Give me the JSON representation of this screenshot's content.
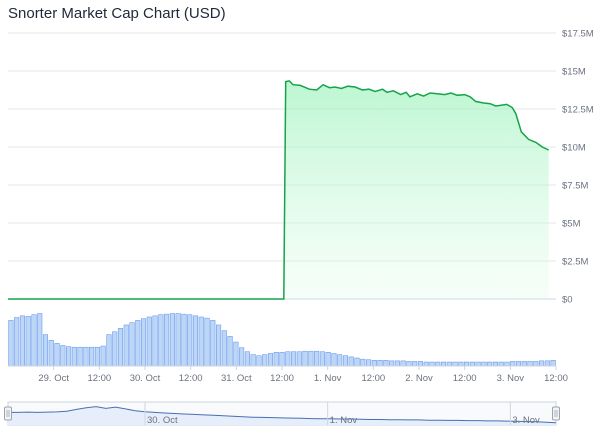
{
  "chart_data": {
    "type": "area",
    "title": "Snorter Market Cap Chart (USD)",
    "y_axis": {
      "min": 0,
      "max": 17.5,
      "unit": "M USD",
      "ticks": [
        {
          "value": 0,
          "label": "$0"
        },
        {
          "value": 2.5,
          "label": "$2.5M"
        },
        {
          "value": 5,
          "label": "$5M"
        },
        {
          "value": 7.5,
          "label": "$7.5M"
        },
        {
          "value": 10,
          "label": "$10M"
        },
        {
          "value": 12.5,
          "label": "$12.5M"
        },
        {
          "value": 15,
          "label": "$15M"
        },
        {
          "value": 17.5,
          "label": "$17.5M"
        }
      ],
      "position": "right"
    },
    "x_axis": {
      "min": 0,
      "max": 6.0,
      "unit": "days from 28 Oct 12:00",
      "ticks": [
        {
          "value": 0.5,
          "label": "29. Oct"
        },
        {
          "value": 1.0,
          "label": "12:00"
        },
        {
          "value": 1.5,
          "label": "30. Oct"
        },
        {
          "value": 2.0,
          "label": "12:00"
        },
        {
          "value": 2.5,
          "label": "31. Oct"
        },
        {
          "value": 3.0,
          "label": "12:00"
        },
        {
          "value": 3.5,
          "label": "1. Nov"
        },
        {
          "value": 4.0,
          "label": "12:00"
        },
        {
          "value": 4.5,
          "label": "2. Nov"
        },
        {
          "value": 5.0,
          "label": "12:00"
        },
        {
          "value": 5.5,
          "label": "3. Nov"
        },
        {
          "value": 6.0,
          "label": "12:00"
        }
      ]
    },
    "grid": true,
    "series": [
      {
        "name": "Market Cap",
        "color": "#16a34a",
        "fill": "#dcfce7",
        "points": [
          [
            0.0,
            0.0
          ],
          [
            2.95,
            0.0
          ],
          [
            3.02,
            0.0
          ],
          [
            3.04,
            14.3
          ],
          [
            3.08,
            14.35
          ],
          [
            3.12,
            14.1
          ],
          [
            3.2,
            14.05
          ],
          [
            3.3,
            13.8
          ],
          [
            3.38,
            13.75
          ],
          [
            3.45,
            14.1
          ],
          [
            3.52,
            13.9
          ],
          [
            3.58,
            13.95
          ],
          [
            3.65,
            13.85
          ],
          [
            3.72,
            14.0
          ],
          [
            3.8,
            13.95
          ],
          [
            3.88,
            13.75
          ],
          [
            3.95,
            13.8
          ],
          [
            4.02,
            13.65
          ],
          [
            4.1,
            13.8
          ],
          [
            4.15,
            13.6
          ],
          [
            4.22,
            13.7
          ],
          [
            4.3,
            13.45
          ],
          [
            4.36,
            13.6
          ],
          [
            4.4,
            13.3
          ],
          [
            4.48,
            13.5
          ],
          [
            4.55,
            13.35
          ],
          [
            4.62,
            13.55
          ],
          [
            4.7,
            13.5
          ],
          [
            4.78,
            13.45
          ],
          [
            4.85,
            13.55
          ],
          [
            4.92,
            13.4
          ],
          [
            5.0,
            13.45
          ],
          [
            5.06,
            13.3
          ],
          [
            5.12,
            13.0
          ],
          [
            5.2,
            12.9
          ],
          [
            5.28,
            12.85
          ],
          [
            5.34,
            12.7
          ],
          [
            5.4,
            12.75
          ],
          [
            5.46,
            12.8
          ],
          [
            5.52,
            12.6
          ],
          [
            5.56,
            12.2
          ],
          [
            5.62,
            11.0
          ],
          [
            5.7,
            10.5
          ],
          [
            5.78,
            10.3
          ],
          [
            5.85,
            10.0
          ],
          [
            5.92,
            9.8
          ]
        ]
      }
    ],
    "volume": {
      "type": "bar",
      "color": "#bcd6f5",
      "border": "#5b8def",
      "max": 1.0,
      "values": [
        0.8,
        0.85,
        0.88,
        0.87,
        0.9,
        0.92,
        0.55,
        0.45,
        0.4,
        0.36,
        0.34,
        0.33,
        0.33,
        0.33,
        0.33,
        0.33,
        0.35,
        0.55,
        0.6,
        0.66,
        0.72,
        0.76,
        0.8,
        0.83,
        0.86,
        0.88,
        0.9,
        0.91,
        0.92,
        0.92,
        0.91,
        0.9,
        0.88,
        0.86,
        0.84,
        0.8,
        0.72,
        0.62,
        0.52,
        0.42,
        0.32,
        0.25,
        0.2,
        0.18,
        0.2,
        0.22,
        0.24,
        0.24,
        0.25,
        0.25,
        0.25,
        0.26,
        0.26,
        0.26,
        0.25,
        0.24,
        0.22,
        0.2,
        0.18,
        0.16,
        0.14,
        0.12,
        0.11,
        0.1,
        0.1,
        0.1,
        0.09,
        0.09,
        0.09,
        0.08,
        0.08,
        0.08,
        0.07,
        0.07,
        0.07,
        0.07,
        0.07,
        0.07,
        0.07,
        0.07,
        0.07,
        0.07,
        0.07,
        0.07,
        0.07,
        0.07,
        0.07,
        0.08,
        0.08,
        0.08,
        0.08,
        0.08,
        0.09,
        0.09,
        0.1
      ]
    },
    "navigator": {
      "color": "#4a6fb5",
      "fill": "#e6eefb",
      "labels": [
        {
          "value": 1.5,
          "label": "30. Oct"
        },
        {
          "value": 3.5,
          "label": "1. Nov"
        },
        {
          "value": 5.5,
          "label": "3. Nov"
        }
      ],
      "values": [
        0.55,
        0.55,
        0.56,
        0.55,
        0.56,
        0.57,
        0.6,
        0.68,
        0.75,
        0.8,
        0.72,
        0.78,
        0.7,
        0.62,
        0.58,
        0.55,
        0.52,
        0.5,
        0.48,
        0.46,
        0.44,
        0.42,
        0.4,
        0.38,
        0.36,
        0.34,
        0.33,
        0.32,
        0.31,
        0.3,
        0.29,
        0.28,
        0.27,
        0.27,
        0.26,
        0.26,
        0.25,
        0.24,
        0.24,
        0.23,
        0.23,
        0.22,
        0.22,
        0.21,
        0.21,
        0.2,
        0.2,
        0.19,
        0.19,
        0.18,
        0.18,
        0.17,
        0.16,
        0.15,
        0.14,
        0.12,
        0.1
      ]
    }
  }
}
